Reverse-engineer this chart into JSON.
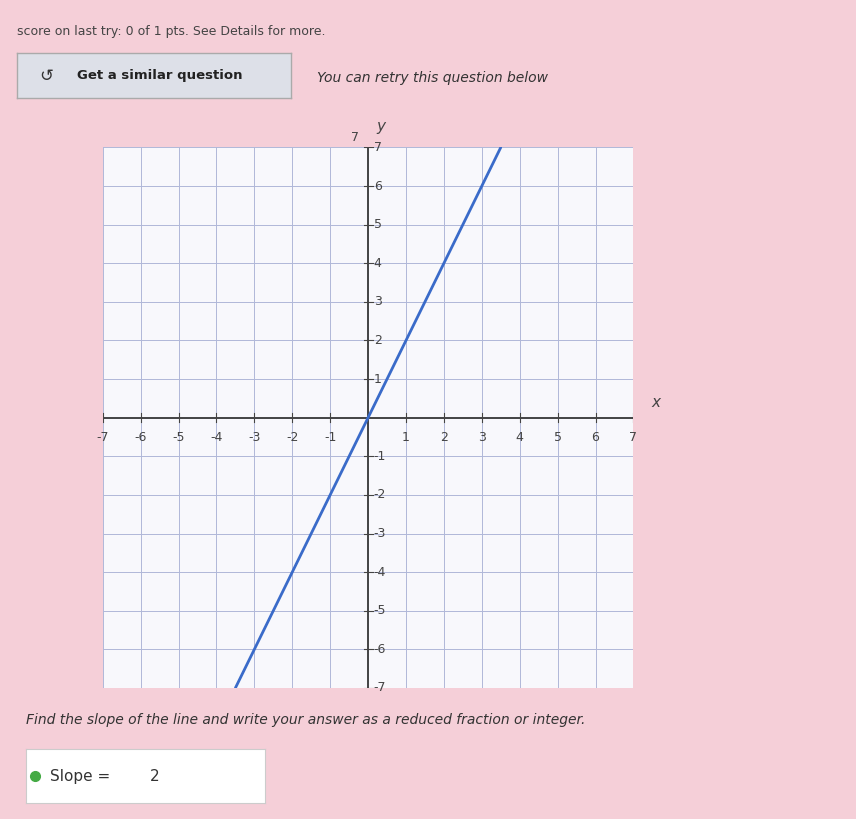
{
  "title_text": "score on last try: 0 of 1 pts. See Details for more.",
  "button_text": "↺ Get a similar question",
  "subtitle_text": "You can retry this question below",
  "instruction_text": "Find the slope of the line and write your answer as a reduced fraction or integer.",
  "slope_text": "Slope = ",
  "slope_value": "2",
  "axis_min": -7,
  "axis_max": 7,
  "slope": 2,
  "intercept": 0,
  "line_color": "#3a6bc9",
  "line_width": 2.0,
  "grid_color": "#b0b8d8",
  "axis_color": "#444444",
  "background_color": "#ffffff",
  "plot_bg_color": "#f8f8fc",
  "top_bg_color": "#f5cfd8",
  "button_bg_color": "#dde0e8",
  "xlabel": "x",
  "ylabel": "y",
  "tick_fontsize": 9,
  "axis_label_fontsize": 11
}
